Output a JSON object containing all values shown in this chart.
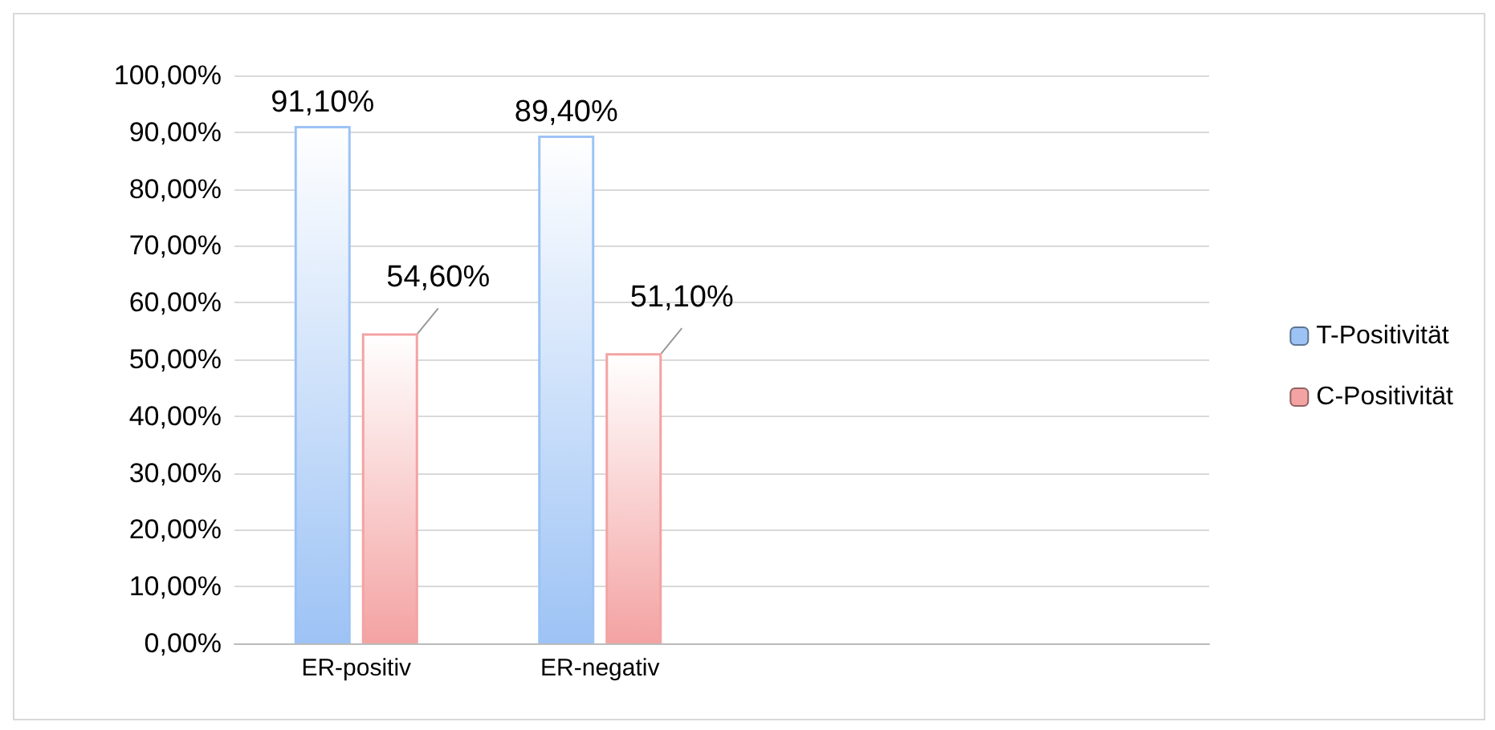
{
  "chart_data": {
    "type": "bar",
    "categories": [
      "ER-positiv",
      "ER-negativ",
      null,
      null
    ],
    "series": [
      {
        "name": "T-Positivität",
        "color": "#9dc3f5",
        "values": [
          91.1,
          89.4,
          null,
          null
        ],
        "value_labels": [
          "91,10%",
          "89,40%",
          null,
          null
        ]
      },
      {
        "name": "C-Positivität",
        "color": "#f4a3a3",
        "values": [
          54.6,
          51.1,
          null,
          null
        ],
        "value_labels": [
          "54,60%",
          "51,10%",
          null,
          null
        ]
      }
    ],
    "ylim": [
      0,
      100
    ],
    "yticks": [
      {
        "value": 0,
        "label": "0,00%"
      },
      {
        "value": 10,
        "label": "10,00%"
      },
      {
        "value": 20,
        "label": "20,00%"
      },
      {
        "value": 30,
        "label": "30,00%"
      },
      {
        "value": 40,
        "label": "40,00%"
      },
      {
        "value": 50,
        "label": "50,00%"
      },
      {
        "value": 60,
        "label": "60,00%"
      },
      {
        "value": 70,
        "label": "70,00%"
      },
      {
        "value": 80,
        "label": "80,00%"
      },
      {
        "value": 90,
        "label": "90,00%"
      },
      {
        "value": 100,
        "label": "100,00%"
      }
    ],
    "grid": "y",
    "legend": "right"
  }
}
